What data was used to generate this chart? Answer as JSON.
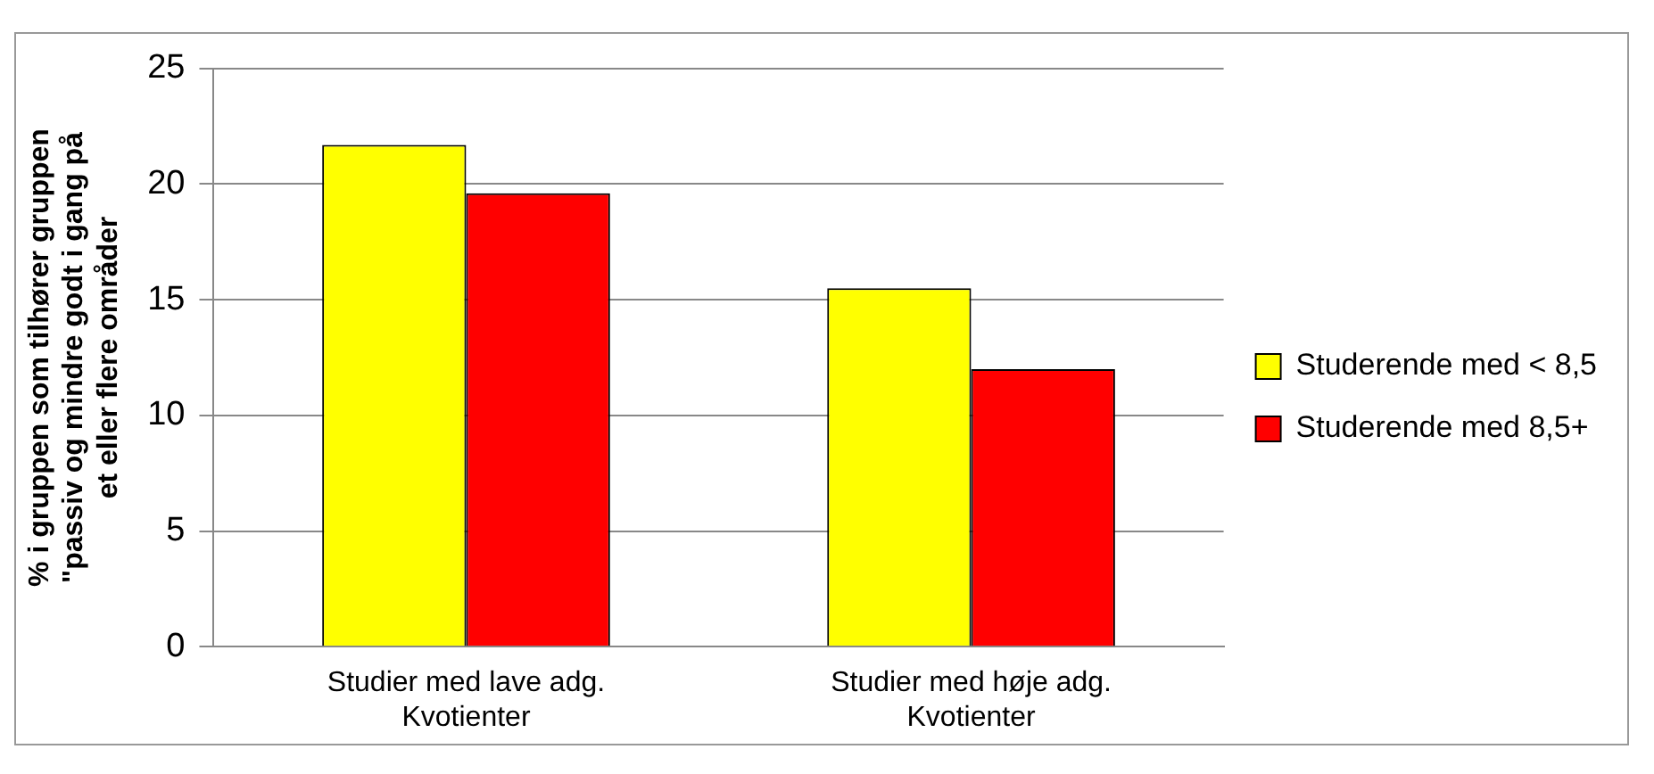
{
  "chart_data": {
    "type": "bar",
    "ylabel": "% i gruppen som tilhører gruppen \"passiv og mindre godt i gang på et eller flere områder",
    "categories": [
      "Studier med lave adg. Kvotienter",
      "Studier med høje adg. Kvotienter"
    ],
    "series": [
      {
        "name": "Studerende med < 8,5",
        "color": "#ffff00",
        "values": [
          21.7,
          15.5
        ]
      },
      {
        "name": "Studerende med 8,5+",
        "color": "#ff0000",
        "values": [
          19.6,
          12.0
        ]
      }
    ],
    "ylim": [
      0,
      25
    ],
    "yticks": [
      0,
      5,
      10,
      15,
      20,
      25
    ],
    "grid": "y",
    "legend": "right"
  }
}
